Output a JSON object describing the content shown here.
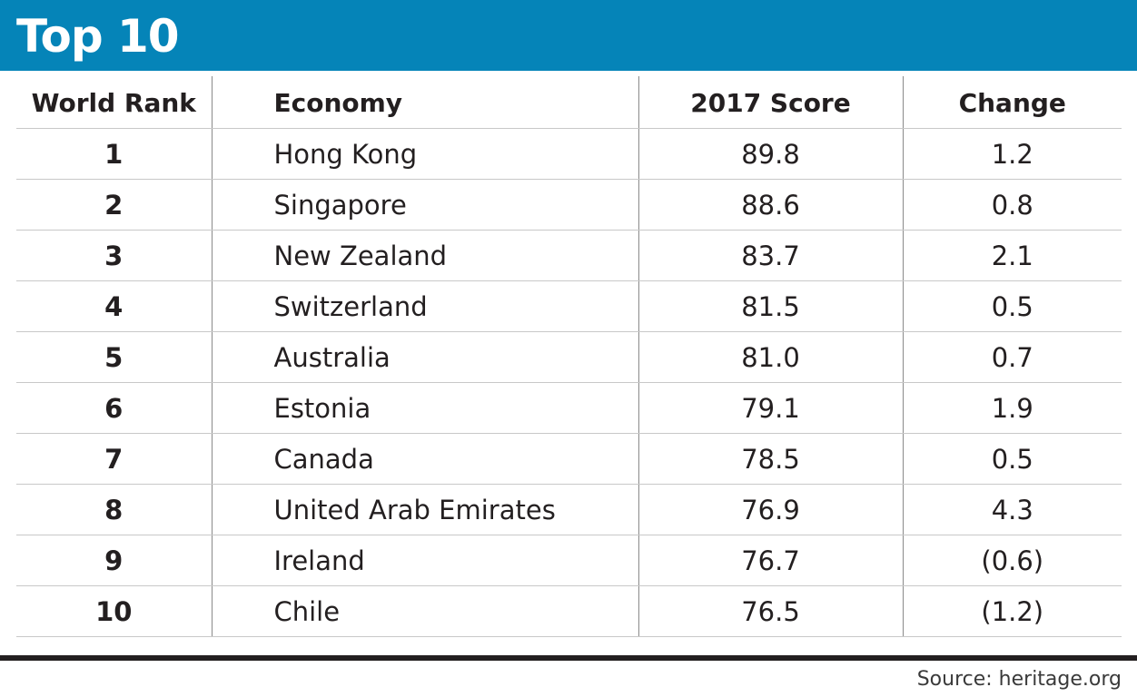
{
  "banner": {
    "title": "Top 10",
    "color": "#0584b8"
  },
  "chart_data": {
    "type": "table",
    "title": "Top 10",
    "columns": [
      "World Rank",
      "Economy",
      "2017 Score",
      "Change"
    ],
    "rows": [
      [
        "1",
        "Hong Kong",
        "89.8",
        "1.2"
      ],
      [
        "2",
        "Singapore",
        "88.6",
        "0.8"
      ],
      [
        "3",
        "New Zealand",
        "83.7",
        "2.1"
      ],
      [
        "4",
        "Switzerland",
        "81.5",
        "0.5"
      ],
      [
        "5",
        "Australia",
        "81.0",
        "0.7"
      ],
      [
        "6",
        "Estonia",
        "79.1",
        "1.9"
      ],
      [
        "7",
        "Canada",
        "78.5",
        "0.5"
      ],
      [
        "8",
        "United Arab Emirates",
        "76.9",
        "4.3"
      ],
      [
        "9",
        "Ireland",
        "76.7",
        "(0.6)"
      ],
      [
        "10",
        "Chile",
        "76.5",
        "(1.2)"
      ]
    ],
    "source": "Source: heritage.org"
  }
}
